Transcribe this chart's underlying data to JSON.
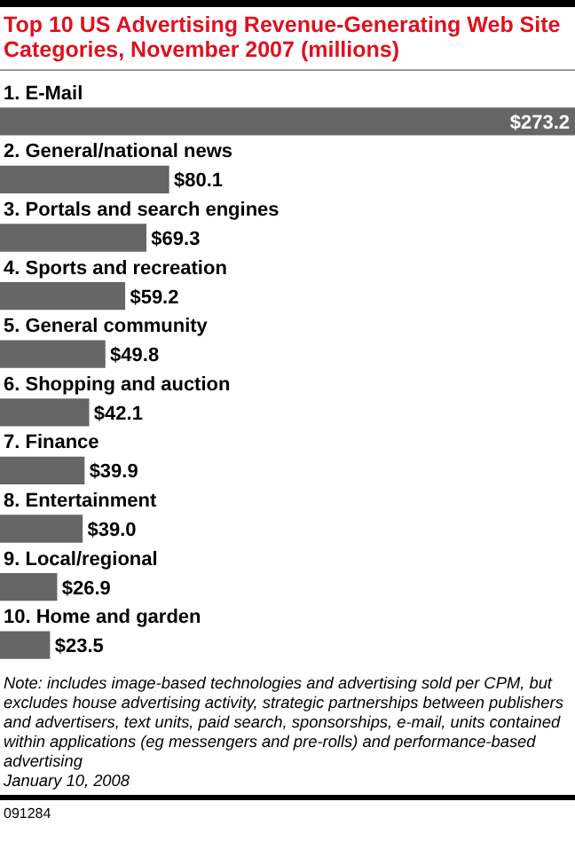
{
  "chart_data": {
    "type": "bar",
    "orientation": "horizontal",
    "title": "Top 10 US Advertising Revenue-Generating Web Site Categories, November 2007 (millions)",
    "categories": [
      "1. E-Mail",
      "2. General/national news",
      "3. Portals and search engines",
      "4. Sports and recreation",
      "5. General community",
      "6. Shopping and auction",
      "7. Finance",
      "8. Entertainment",
      "9. Local/regional",
      "10. Home and garden"
    ],
    "values": [
      273.2,
      80.1,
      69.3,
      59.2,
      49.8,
      42.1,
      39.9,
      39.0,
      26.9,
      23.5
    ],
    "value_labels": [
      "$273.2",
      "$80.1",
      "$69.3",
      "$59.2",
      "$49.8",
      "$42.1",
      "$39.9",
      "$39.0",
      "$26.9",
      "$23.5"
    ],
    "color": "#666666",
    "xlim": [
      0,
      273.2
    ],
    "tick_labels": false,
    "legend": false,
    "annotations": [
      "Note: includes image-based technologies and advertising sold per CPM, but excludes house advertising activity, strategic partnerships between publishers and advertisers, text units, paid search, sponsorships, e-mail, units contained within applications (eg messengers and pre-rolls) and performance-based advertising",
      "January 10, 2008",
      "091284"
    ]
  }
}
